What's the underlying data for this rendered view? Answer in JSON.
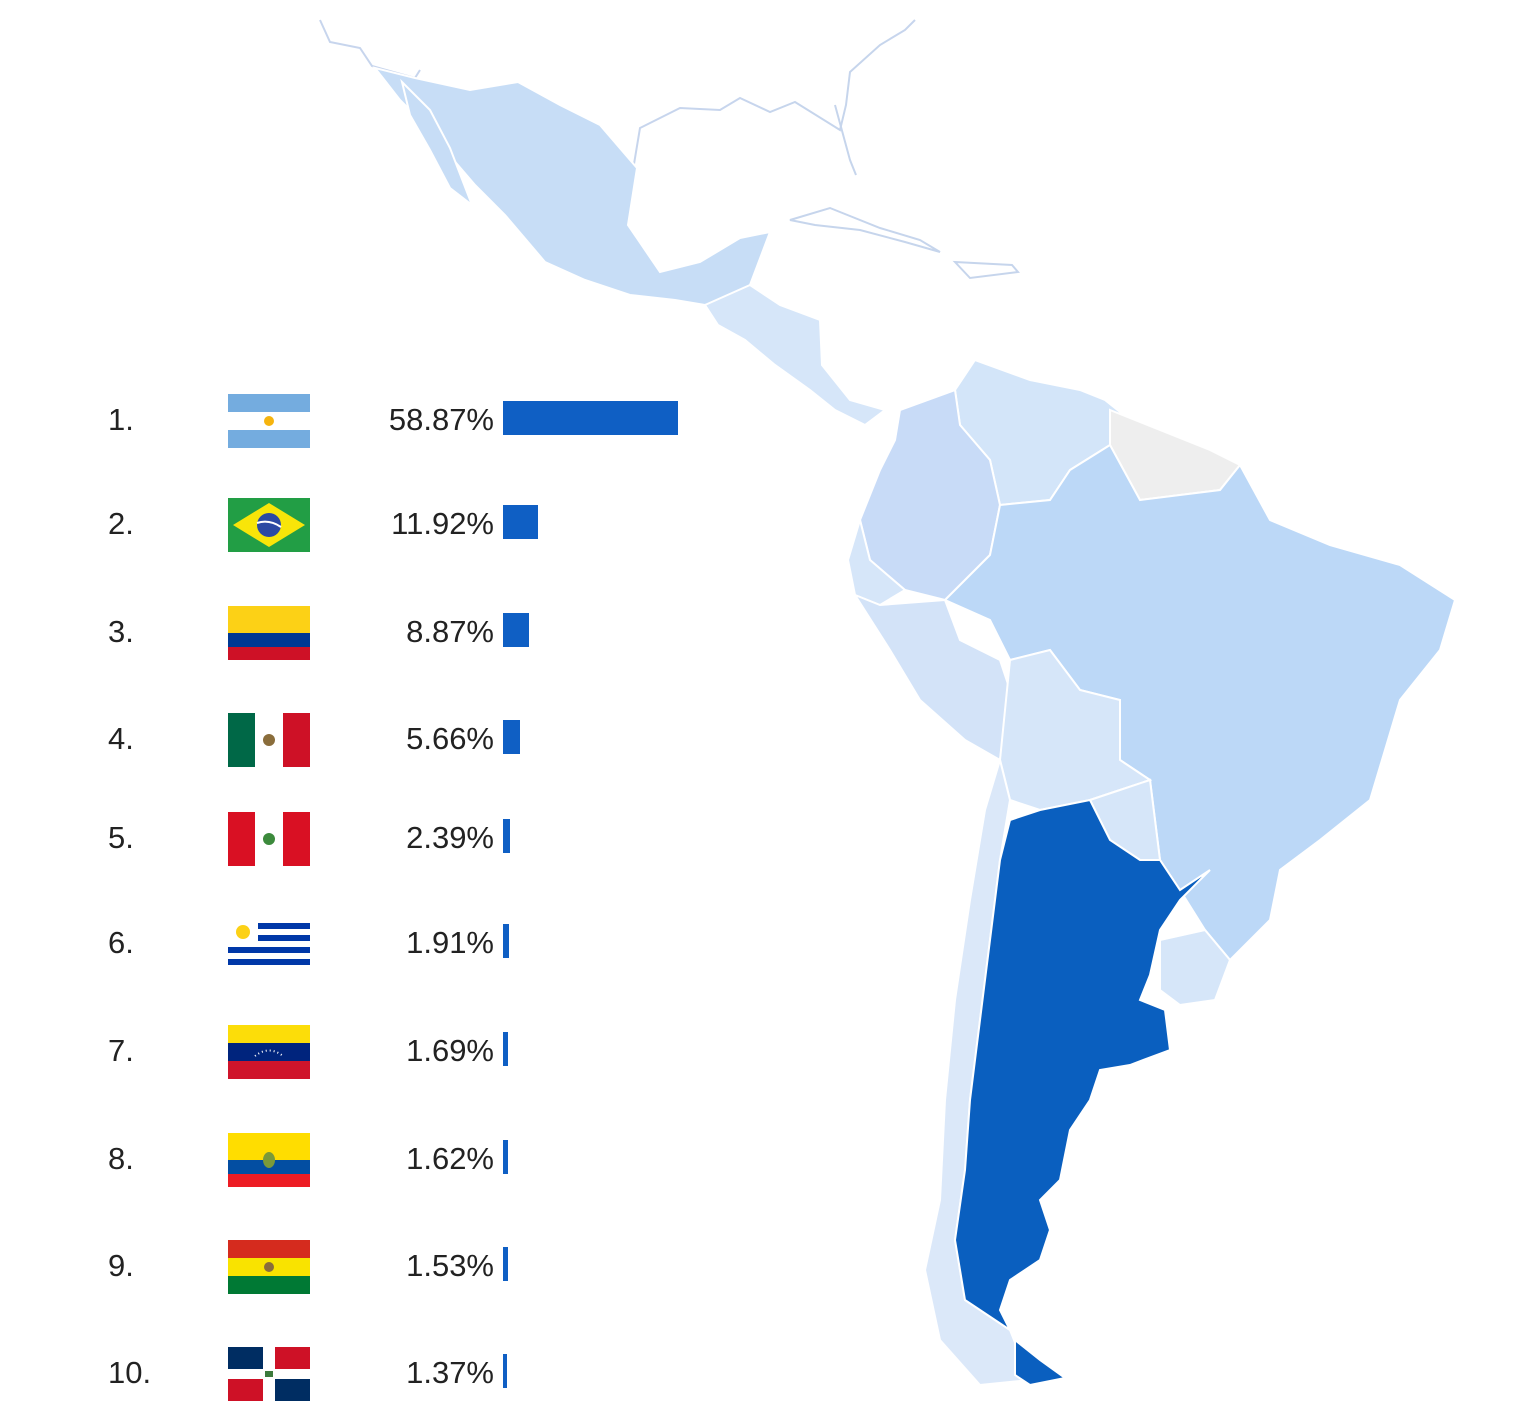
{
  "ranking": [
    {
      "rank": "1.",
      "flag": "argentina-flag",
      "percent": "58.87%",
      "value": 58.87
    },
    {
      "rank": "2.",
      "flag": "brazil-flag",
      "percent": "11.92%",
      "value": 11.92
    },
    {
      "rank": "3.",
      "flag": "colombia-flag",
      "percent": "8.87%",
      "value": 8.87
    },
    {
      "rank": "4.",
      "flag": "mexico-flag",
      "percent": "5.66%",
      "value": 5.66
    },
    {
      "rank": "5.",
      "flag": "peru-flag",
      "percent": "2.39%",
      "value": 2.39
    },
    {
      "rank": "6.",
      "flag": "uruguay-flag",
      "percent": "1.91%",
      "value": 1.91
    },
    {
      "rank": "7.",
      "flag": "venezuela-flag",
      "percent": "1.69%",
      "value": 1.69
    },
    {
      "rank": "8.",
      "flag": "ecuador-flag",
      "percent": "1.62%",
      "value": 1.62
    },
    {
      "rank": "9.",
      "flag": "bolivia-flag",
      "percent": "1.53%",
      "value": 1.53
    },
    {
      "rank": "10.",
      "flag": "dominican-republic-flag",
      "percent": "1.37%",
      "value": 1.37
    }
  ],
  "colors": {
    "bar": "#0f5fc4",
    "highest": "#0a5fbf",
    "medium": "#bcd8f7",
    "light": "#d3e5f9",
    "lighter": "#dde9f9",
    "no_data": "#eeeeee",
    "border": "#ffffff"
  }
}
